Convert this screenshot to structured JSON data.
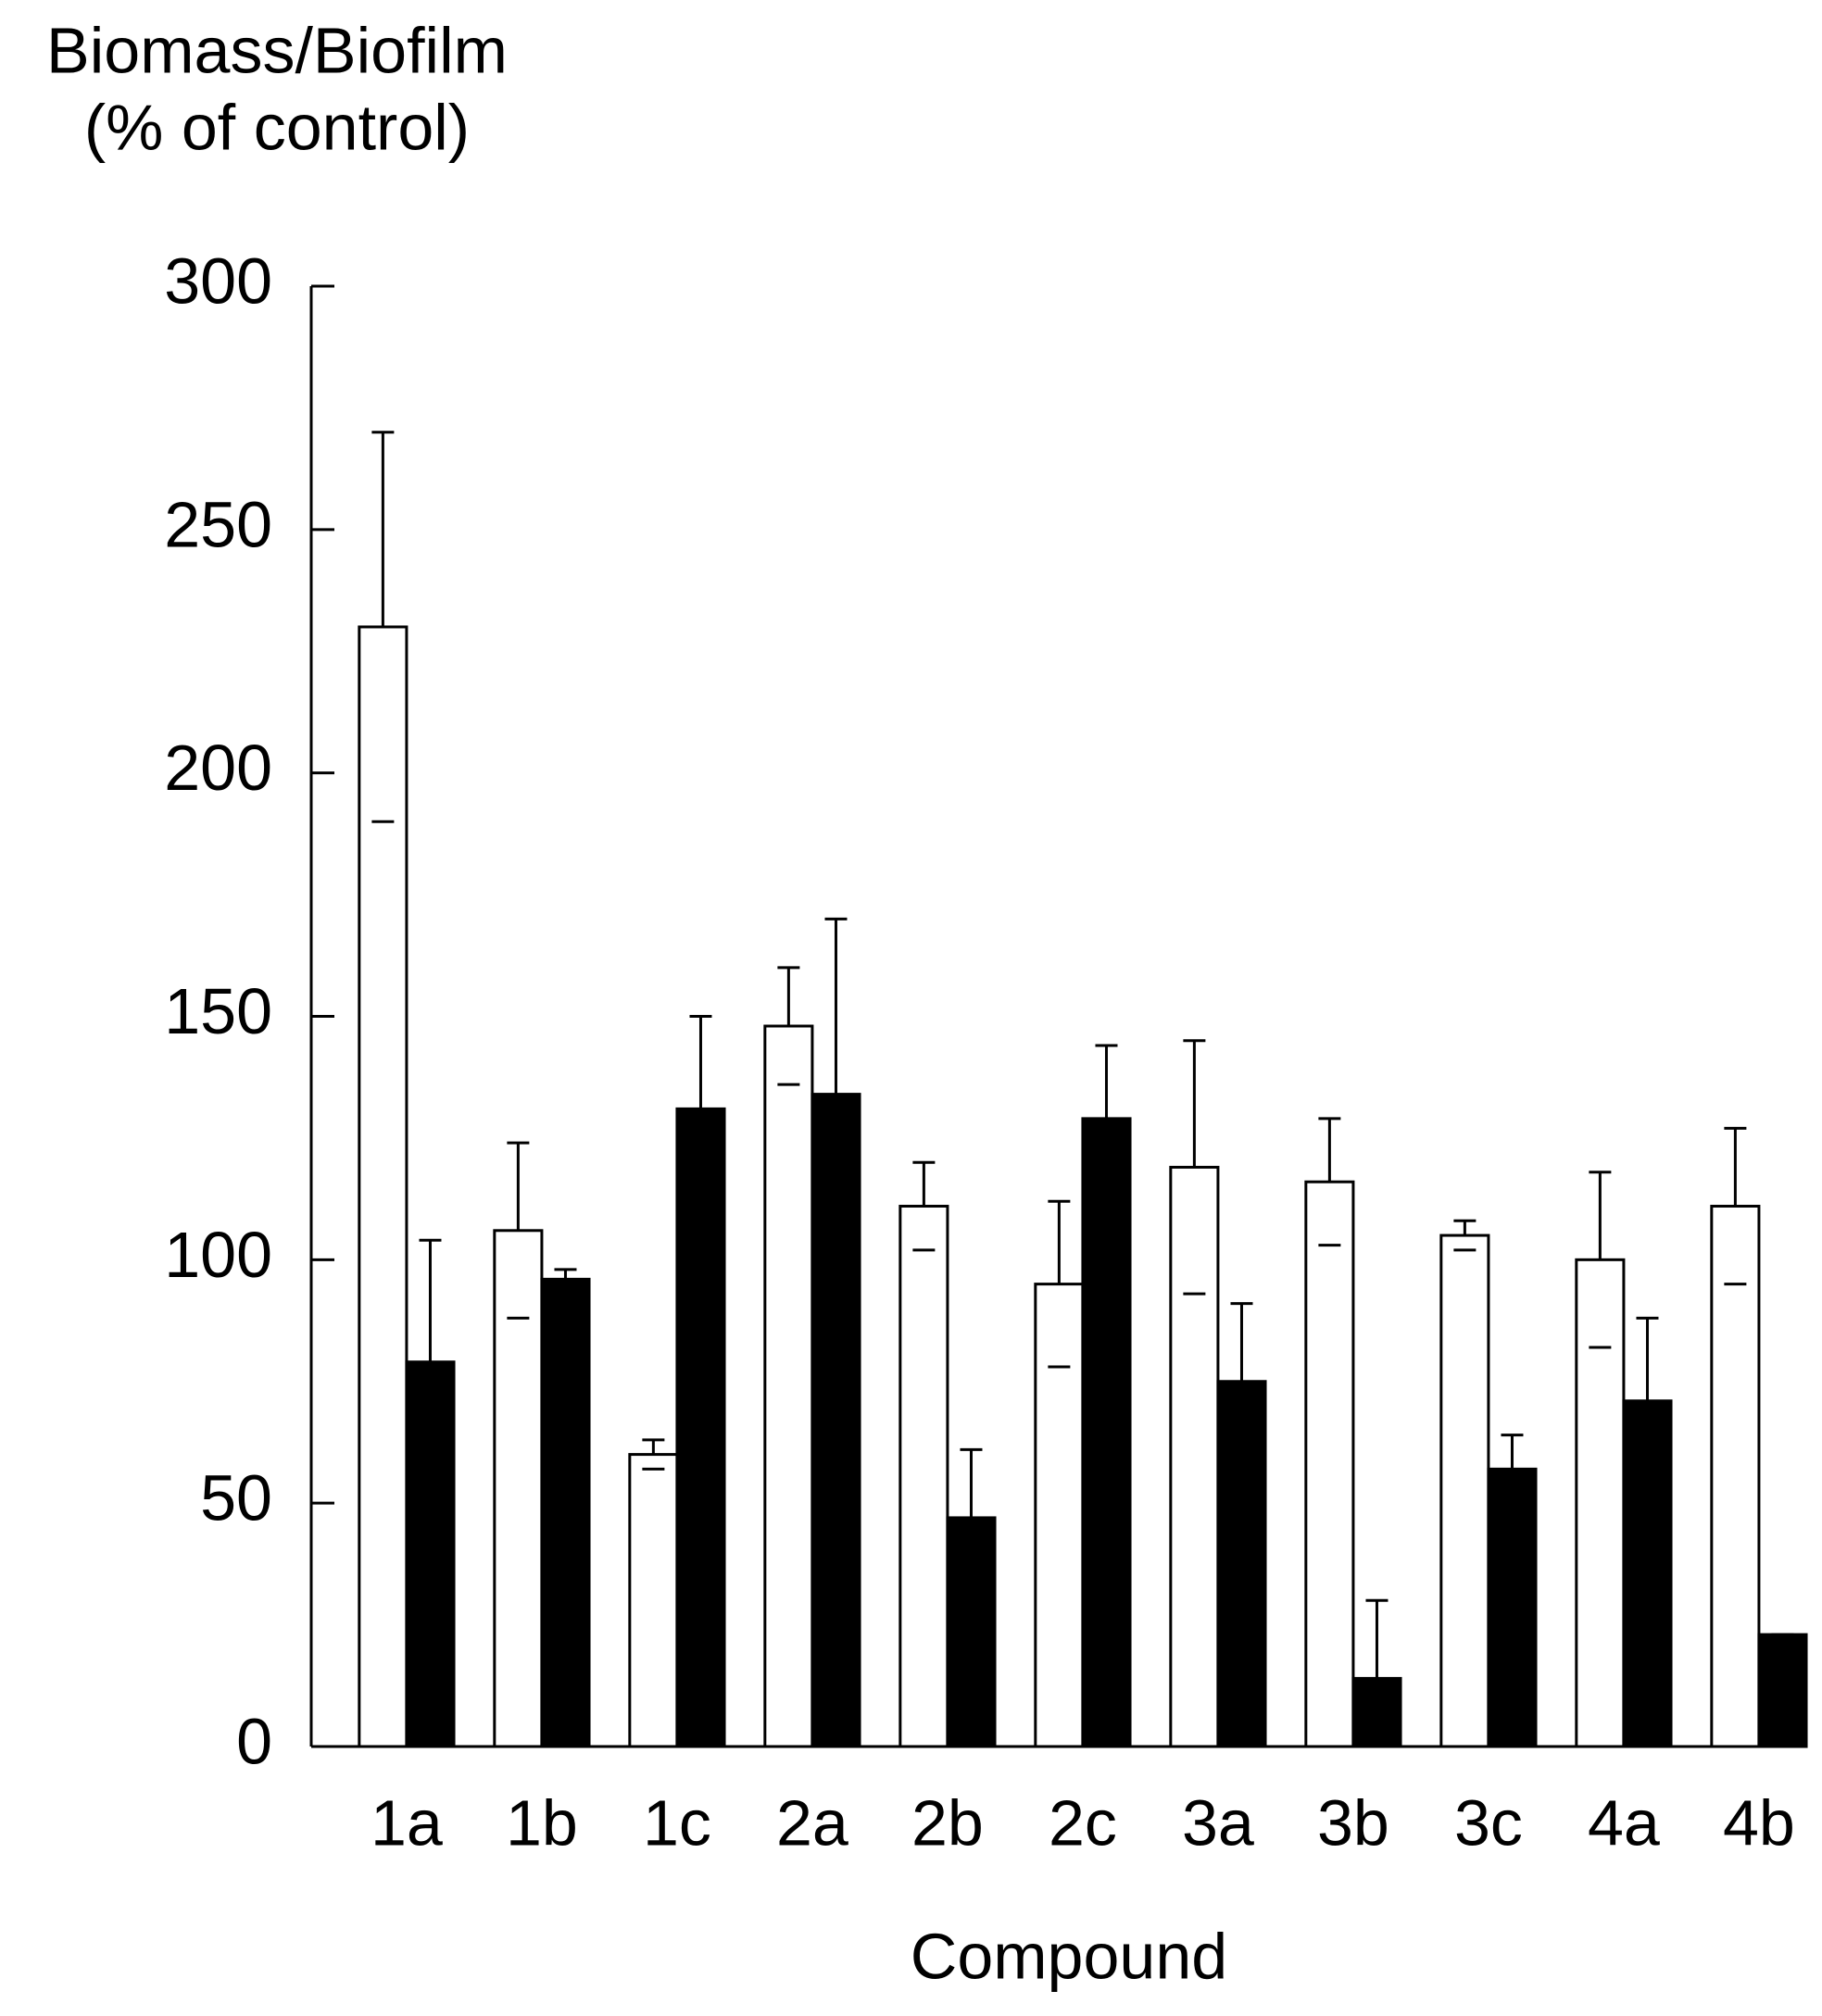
{
  "chart_data": {
    "type": "bar",
    "title": [
      "Biomass/Biofilm",
      "(% of control)"
    ],
    "xlabel": "Compound",
    "categories": [
      "1a",
      "1b",
      "1c",
      "2a",
      "2b",
      "2c",
      "3a",
      "3b",
      "3c",
      "4a",
      "4b"
    ],
    "series": [
      {
        "color": "#ffffff",
        "values": [
          230,
          106,
          60,
          148,
          111,
          95,
          119,
          116,
          105,
          100,
          111
        ],
        "errors": [
          40,
          18,
          3,
          12,
          9,
          17,
          26,
          13,
          3,
          18,
          16
        ]
      },
      {
        "color": "#000000",
        "values": [
          79,
          96,
          131,
          134,
          47,
          129,
          75,
          14,
          57,
          71,
          23
        ],
        "errors": [
          25,
          2,
          19,
          36,
          14,
          15,
          16,
          16,
          7,
          17,
          0
        ]
      }
    ],
    "ylim": [
      0,
      300
    ],
    "yticks": [
      0,
      50,
      100,
      150,
      200,
      250,
      300
    ],
    "grid": false
  }
}
